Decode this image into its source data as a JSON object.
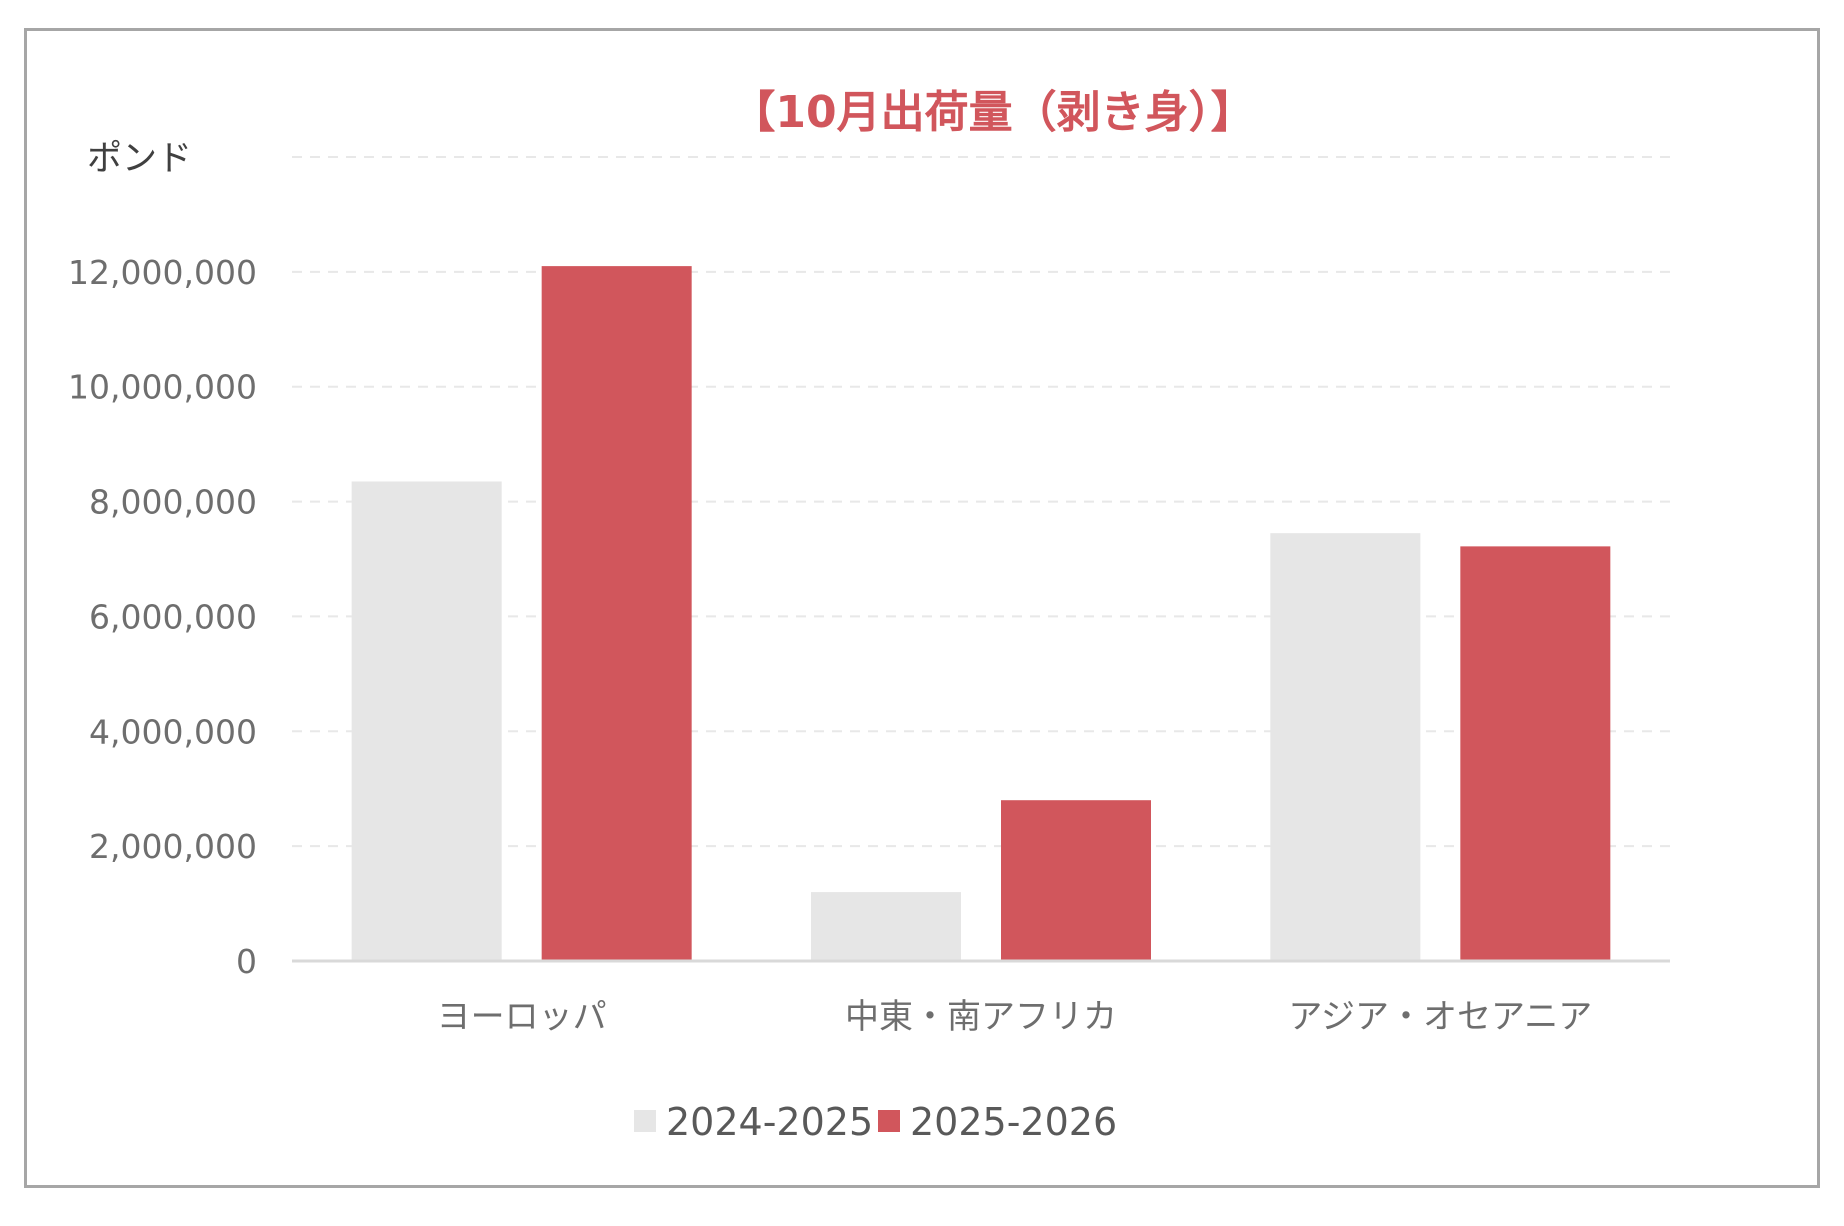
{
  "chart_data": {
    "type": "bar",
    "title": "【10月出荷量（剥き身）】",
    "unit_label": "ポンド",
    "categories": [
      "ヨーロッパ",
      "中東・南アフリカ",
      "アジア・オセアニア"
    ],
    "series": [
      {
        "name": "2024-2025",
        "color": "#e6e6e6",
        "values": [
          8350000,
          1200000,
          7450000
        ]
      },
      {
        "name": "2025-2026",
        "color": "#d1565c",
        "values": [
          12100000,
          2800000,
          7220000
        ]
      }
    ],
    "y_ticks": [
      "0",
      "2,000,000",
      "4,000,000",
      "6,000,000",
      "8,000,000",
      "10,000,000",
      "12,000,000"
    ],
    "ylim": [
      0,
      14000000
    ],
    "grid": true,
    "legend_position": "bottom",
    "title_color": "#d1565c"
  }
}
